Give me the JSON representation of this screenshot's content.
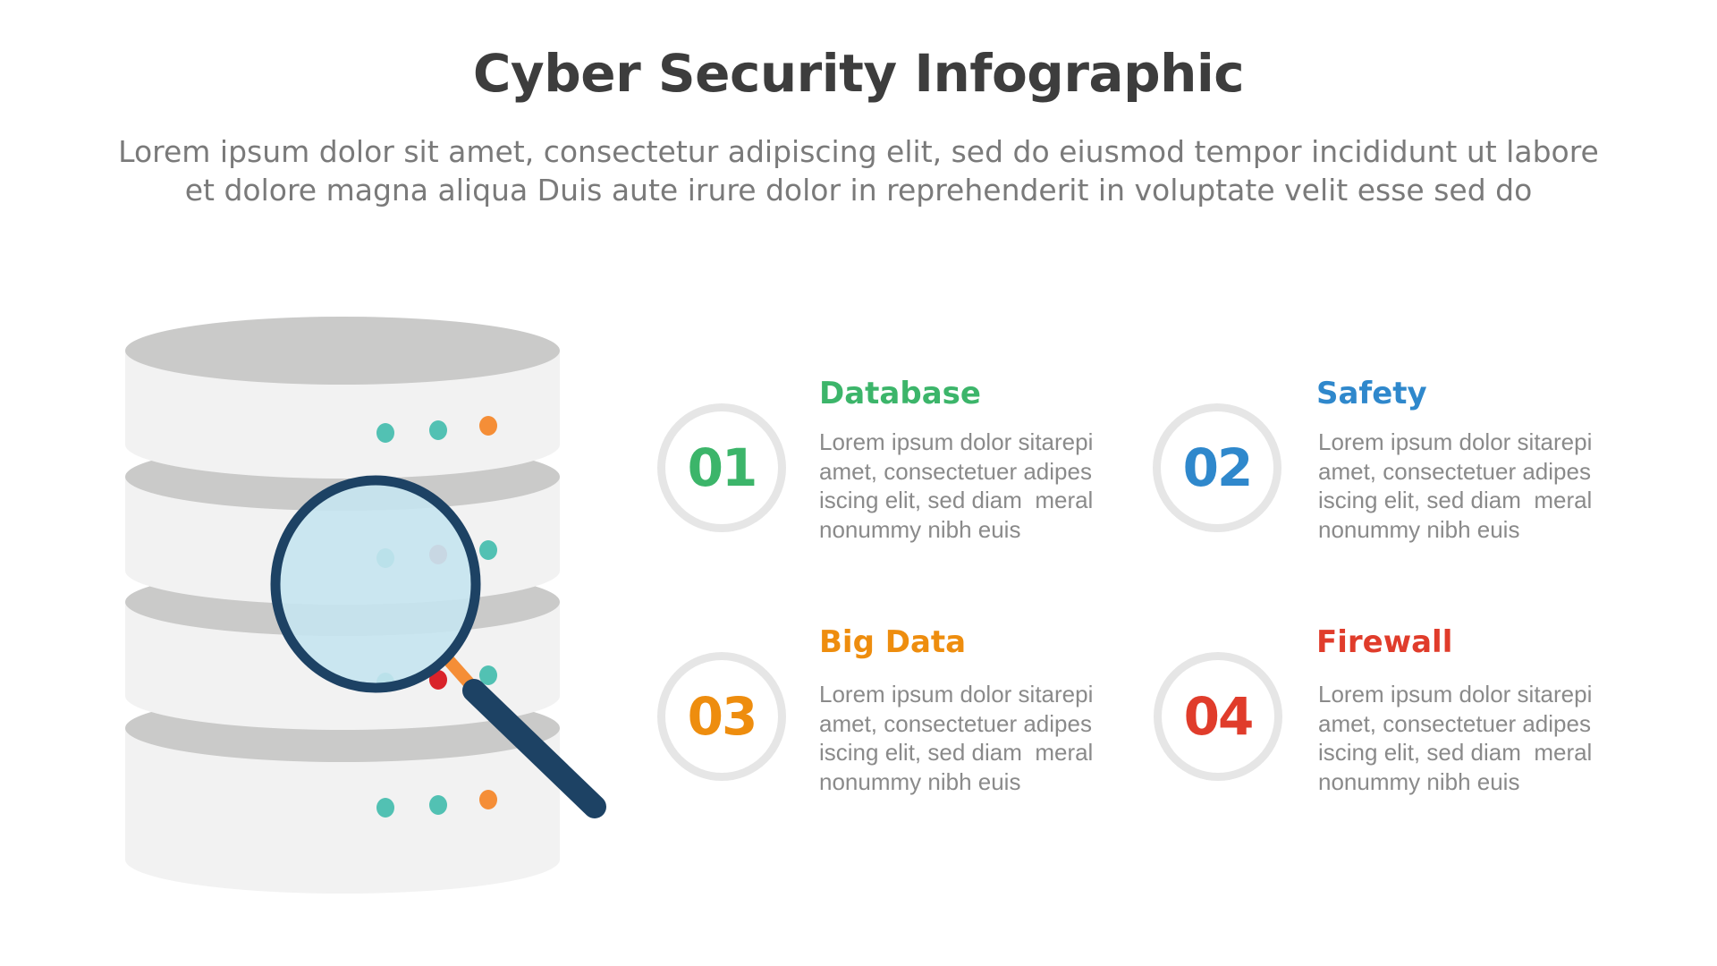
{
  "title": "Cyber Security Infographic",
  "subtitle": {
    "line1": "Lorem ipsum dolor sit amet, consectetur adipiscing elit, sed do eiusmod tempor incididunt ut labore",
    "line2": "et dolore magna aliqua Duis aute irure dolor in reprehenderit in voluptate velit esse sed do"
  },
  "illustration": {
    "icons": [
      "database-icon",
      "magnifier-icon"
    ]
  },
  "items": [
    {
      "number": "01",
      "heading": "Database",
      "color": "#3cb56a",
      "body": [
        "Lorem ipsum dolor sitarepi",
        "amet, consectetuer adipes",
        "iscing elit, sed diam  meral",
        "nonummy nibh euis"
      ]
    },
    {
      "number": "02",
      "heading": "Safety",
      "color": "#2f88cc",
      "body": [
        "Lorem ipsum dolor sitarepi",
        "amet, consectetuer adipes",
        "iscing elit, sed diam  meral",
        "nonummy nibh euis"
      ]
    },
    {
      "number": "03",
      "heading": "Big Data",
      "color": "#ee8d0e",
      "body": [
        "Lorem ipsum dolor sitarepi",
        "amet, consectetuer adipes",
        "iscing elit, sed diam  meral",
        "nonummy nibh euis"
      ]
    },
    {
      "number": "04",
      "heading": "Firewall",
      "color": "#e03c2b",
      "body": [
        "Lorem ipsum dolor sitarepi",
        "amet, consectetuer adipes",
        "iscing elit, sed diam  meral",
        "nonummy nibh euis"
      ]
    }
  ]
}
